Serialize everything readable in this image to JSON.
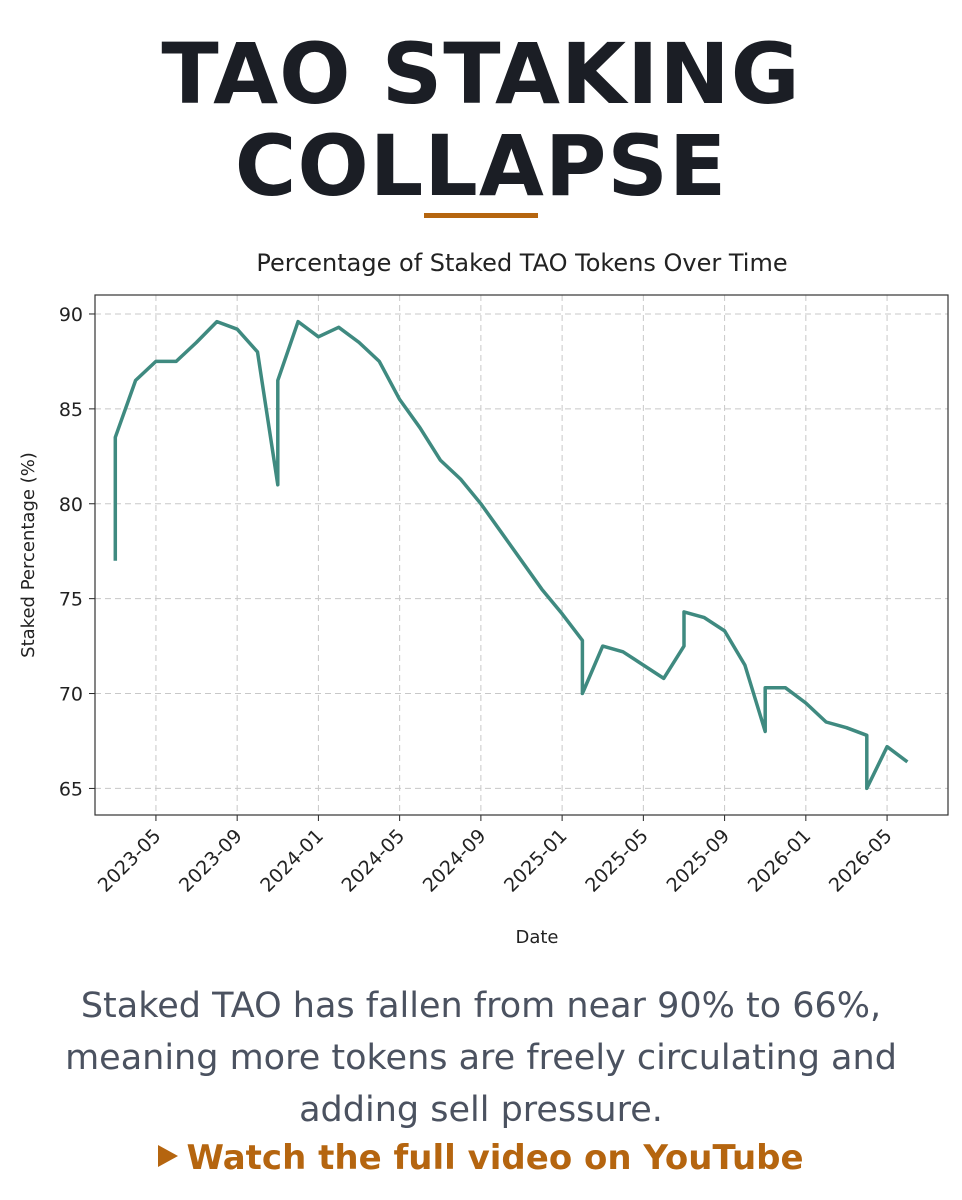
{
  "title": "TAO STAKING COLLAPSE",
  "chart_data": {
    "type": "line",
    "title": "Percentage of Staked TAO Tokens Over Time",
    "x_label": "Date",
    "y_label": "Staked Percentage (%)",
    "color": "#3f8a80",
    "grid": true,
    "x": [
      "2023-03",
      "2023-03",
      "2023-04",
      "2023-05",
      "2023-06",
      "2023-07",
      "2023-08",
      "2023-09",
      "2023-10",
      "2023-11",
      "2023-11",
      "2023-12",
      "2024-01",
      "2024-02",
      "2024-03",
      "2024-04",
      "2024-05",
      "2024-06",
      "2024-07",
      "2024-08",
      "2024-09",
      "2024-10",
      "2024-11",
      "2024-12",
      "2025-01",
      "2025-02",
      "2025-02",
      "2025-03",
      "2025-04",
      "2025-05",
      "2025-06",
      "2025-07",
      "2025-07",
      "2025-08",
      "2025-09",
      "2025-10",
      "2025-11",
      "2025-11",
      "2025-12",
      "2026-01",
      "2026-02",
      "2026-03",
      "2026-04",
      "2026-04",
      "2026-05",
      "2026-06"
    ],
    "values": [
      77,
      83.5,
      86.5,
      87.5,
      87.5,
      88.5,
      89.6,
      89.2,
      88,
      81,
      86.5,
      89.6,
      88.8,
      89.3,
      88.5,
      87.5,
      85.5,
      84,
      82.3,
      81.3,
      80,
      78.5,
      77,
      75.5,
      74.2,
      72.8,
      70,
      72.5,
      72.2,
      71.5,
      70.8,
      72.5,
      74.3,
      74,
      73.3,
      71.5,
      68,
      70.3,
      70.3,
      69.5,
      68.5,
      68.2,
      67.8,
      65,
      67.2,
      66.4
    ],
    "xlim": [
      "2023-02",
      "2026-08"
    ],
    "xticks": [
      "2023-05",
      "2023-09",
      "2024-01",
      "2024-05",
      "2024-09",
      "2025-01",
      "2025-05",
      "2025-09",
      "2026-01",
      "2026-05"
    ],
    "ylim": [
      63.6,
      91
    ],
    "yticks": [
      65,
      70,
      75,
      80,
      85,
      90
    ]
  },
  "caption": "Staked TAO has fallen from near 90% to 66%, meaning more tokens are freely circulating and adding sell pressure.",
  "cta": "Watch the full video on YouTube"
}
